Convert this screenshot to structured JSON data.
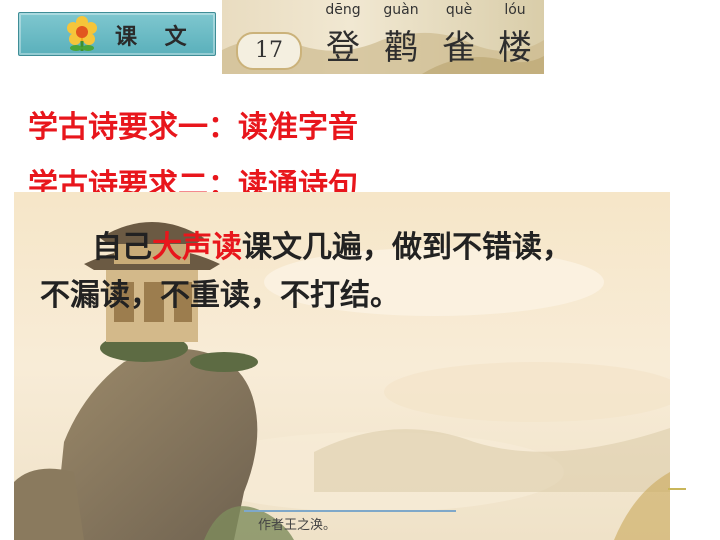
{
  "badge": {
    "text": "课 文"
  },
  "banner": {
    "lesson_number": "17",
    "title": [
      {
        "pinyin": "dēng",
        "hanzi": "登"
      },
      {
        "pinyin": "guàn",
        "hanzi": "鹳"
      },
      {
        "pinyin": "què",
        "hanzi": "雀"
      },
      {
        "pinyin": "lóu",
        "hanzi": "楼"
      }
    ]
  },
  "requirements": [
    "学古诗要求一：读准字音",
    "学古诗要求二：读通诗句"
  ],
  "instruction": {
    "before": "自己",
    "highlight": "大声读",
    "after": "课文几遍，做到不错读，",
    "line2": "不漏读，不重读，不打结。"
  },
  "caption": "作者王之涣。",
  "colors": {
    "heading_red": "#e8161c",
    "badge_teal": "#5ab0bb"
  }
}
